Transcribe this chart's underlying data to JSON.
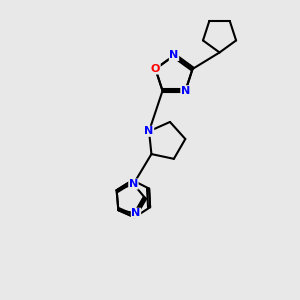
{
  "background_color": "#e8e8e8",
  "bond_color": "#000000",
  "n_color": "#0000ff",
  "o_color": "#ff0000",
  "font_size_atoms": 9,
  "line_width": 1.5,
  "figsize": [
    3.0,
    3.0
  ],
  "dpi": 100,
  "xlim": [
    0,
    10
  ],
  "ylim": [
    0,
    10
  ]
}
